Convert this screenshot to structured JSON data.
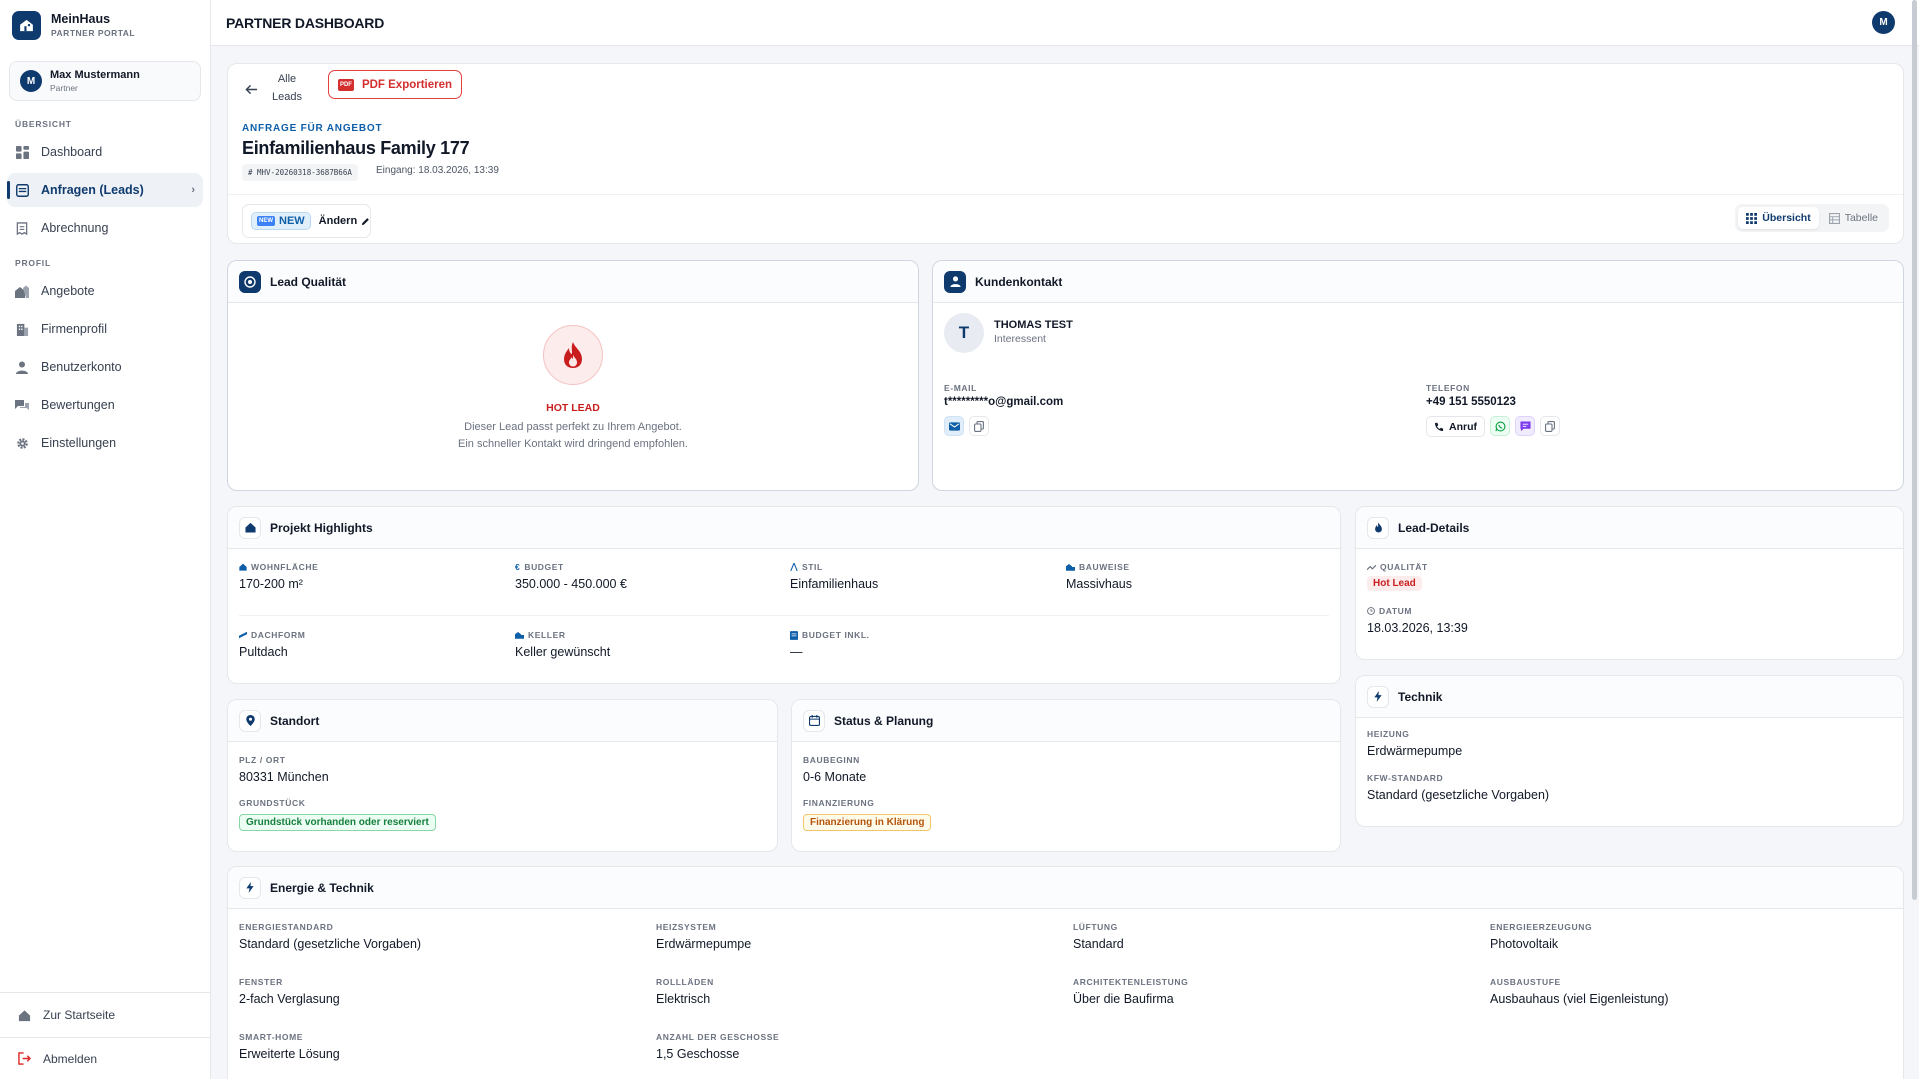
{
  "brand": {
    "name": "MeinHaus",
    "sub": "PARTNER PORTAL"
  },
  "user": {
    "initial": "M",
    "name": "Max Mustermann",
    "role": "Partner"
  },
  "nav": {
    "section_overview": "ÜBERSICHT",
    "section_profile": "PROFIL",
    "items": [
      {
        "label": "Dashboard",
        "icon": "grid-icon"
      },
      {
        "label": "Anfragen (Leads)",
        "icon": "inbox-icon",
        "active": true
      },
      {
        "label": "Abrechnung",
        "icon": "receipt-icon"
      },
      {
        "label": "Angebote",
        "icon": "houses-icon"
      },
      {
        "label": "Firmenprofil",
        "icon": "building-icon"
      },
      {
        "label": "Benutzerkonto",
        "icon": "user-icon"
      },
      {
        "label": "Bewertungen",
        "icon": "chat-icon"
      },
      {
        "label": "Einstellungen",
        "icon": "gear-icon"
      }
    ],
    "footer": {
      "home": "Zur Startseite",
      "logout": "Abmelden"
    }
  },
  "topbar": {
    "title": "PARTNER DASHBOARD",
    "avatar": "M"
  },
  "header": {
    "back_label": "Alle Leads",
    "pdf_icon": "PDF",
    "pdf_label": "PDF Exportieren",
    "kicker": "ANFRAGE FÜR ANGEBOT",
    "title": "Einfamilienhaus Family 177",
    "id": "# MHV-20260318-3687B66A",
    "eingang": "Eingang: 18.03.2026, 13:39",
    "status_icon": "NEW",
    "status": "NEW",
    "change_label": "Ändern",
    "view_overview": "Übersicht",
    "view_table": "Tabelle"
  },
  "quality": {
    "title": "Lead Qualität",
    "label": "HOT LEAD",
    "description": "Dieser Lead passt perfekt zu Ihrem Angebot. Ein schneller Kontakt wird dringend empfohlen."
  },
  "contact": {
    "title": "Kundenkontakt",
    "initial": "T",
    "name": "THOMAS TEST",
    "role": "Interessent",
    "email_label": "E-MAIL",
    "email": "t*********o@gmail.com",
    "phone_label": "TELEFON",
    "phone": "+49 151 5550123",
    "call_label": "Anruf"
  },
  "highlights": {
    "title": "Projekt Highlights",
    "fields": [
      {
        "label": "WOHNFLÄCHE",
        "value": "170-200 m²"
      },
      {
        "label": "BUDGET",
        "value": "350.000 - 450.000 €"
      },
      {
        "label": "STIL",
        "value": "Einfamilienhaus"
      },
      {
        "label": "BAUWEISE",
        "value": "Massivhaus"
      },
      {
        "label": "DACHFORM",
        "value": "Pultdach"
      },
      {
        "label": "KELLER",
        "value": "Keller gewünscht"
      },
      {
        "label": "BUDGET INKL.",
        "value": "—"
      }
    ]
  },
  "lead_details": {
    "title": "Lead-Details",
    "quality_label": "QUALITÄT",
    "quality_value": "Hot Lead",
    "date_label": "DATUM",
    "date_value": "18.03.2026, 13:39"
  },
  "location": {
    "title": "Standort",
    "plz_label": "PLZ / ORT",
    "plz_value": "80331 München",
    "plot_label": "GRUNDSTÜCK",
    "plot_value": "Grundstück vorhanden oder reserviert"
  },
  "status_planning": {
    "title": "Status & Planung",
    "start_label": "BAUBEGINN",
    "start_value": "0-6 Monate",
    "finance_label": "FINANZIERUNG",
    "finance_value": "Finanzierung in Klärung"
  },
  "technik": {
    "title": "Technik",
    "heating_label": "HEIZUNG",
    "heating_value": "Erdwärmepumpe",
    "kfw_label": "KFW-STANDARD",
    "kfw_value": "Standard (gesetzliche Vorgaben)"
  },
  "energy": {
    "title": "Energie & Technik",
    "fields": [
      {
        "label": "ENERGIESTANDARD",
        "value": "Standard (gesetzliche Vorgaben)"
      },
      {
        "label": "HEIZSYSTEM",
        "value": "Erdwärmepumpe"
      },
      {
        "label": "LÜFTUNG",
        "value": "Standard"
      },
      {
        "label": "ENERGIEERZEUGUNG",
        "value": "Photovoltaik"
      },
      {
        "label": "FENSTER",
        "value": "2-fach Verglasung"
      },
      {
        "label": "ROLLLÄDEN",
        "value": "Elektrisch"
      },
      {
        "label": "ARCHITEKTENLEISTUNG",
        "value": "Über die Baufirma"
      },
      {
        "label": "AUSBAUSTUFE",
        "value": "Ausbauhaus (viel Eigenleistung)"
      },
      {
        "label": "SMART-HOME",
        "value": "Erweiterte Lösung"
      },
      {
        "label": "ANZAHL DER GESCHOSSE",
        "value": "1,5 Geschosse"
      }
    ]
  },
  "colors": {
    "primary": "#0f3a6e",
    "hot": "#c81e1e",
    "accent": "#0f5fa8"
  }
}
